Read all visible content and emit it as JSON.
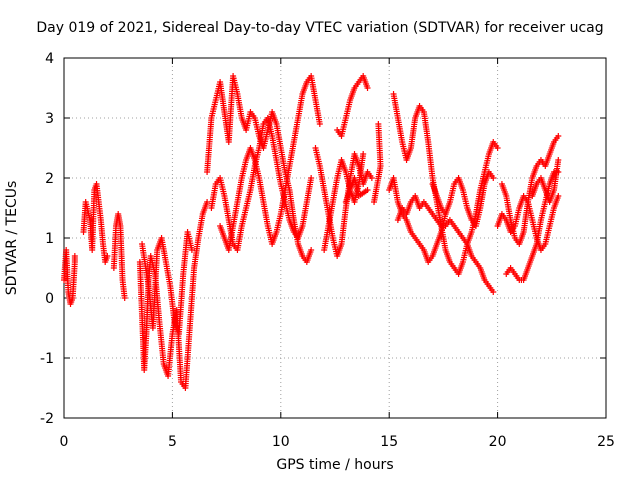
{
  "chart_data": {
    "type": "scatter",
    "title": "Day 019 of 2021, Sidereal Day-to-day VTEC variation (SDTVAR) for receiver ucag",
    "xlabel": "GPS time / hours",
    "ylabel": "SDTVAR / TECUs",
    "xlim": [
      0,
      25
    ],
    "ylim": [
      -2,
      4
    ],
    "xticks": [
      "0",
      "5",
      "10",
      "15",
      "20",
      "25"
    ],
    "yticks": [
      "-2",
      "-1",
      "0",
      "1",
      "2",
      "3",
      "4"
    ],
    "grid": true,
    "marker": "+",
    "color": "#ff0000",
    "series": [
      {
        "points": [
          [
            0.0,
            0.3
          ],
          [
            0.1,
            0.8
          ],
          [
            0.2,
            0.1
          ],
          [
            0.3,
            -0.1
          ],
          [
            0.4,
            0.0
          ],
          [
            0.5,
            0.6
          ],
          [
            0.5,
            0.7
          ]
        ]
      },
      {
        "points": [
          [
            0.9,
            1.1
          ],
          [
            1.0,
            1.6
          ],
          [
            1.2,
            1.3
          ],
          [
            1.3,
            0.8
          ],
          [
            1.4,
            1.8
          ],
          [
            1.5,
            1.9
          ],
          [
            1.6,
            1.6
          ],
          [
            1.7,
            1.3
          ],
          [
            1.8,
            0.9
          ],
          [
            1.9,
            0.6
          ],
          [
            2.0,
            0.7
          ]
        ]
      },
      {
        "points": [
          [
            2.3,
            0.5
          ],
          [
            2.4,
            1.2
          ],
          [
            2.5,
            1.4
          ],
          [
            2.6,
            1.2
          ],
          [
            2.7,
            0.3
          ],
          [
            2.8,
            0.0
          ]
        ]
      },
      {
        "points": [
          [
            3.5,
            0.6
          ],
          [
            3.6,
            -0.3
          ],
          [
            3.7,
            -1.2
          ],
          [
            3.8,
            -0.6
          ],
          [
            3.9,
            0.3
          ],
          [
            4.0,
            0.7
          ],
          [
            4.2,
            0.4
          ],
          [
            4.4,
            -0.4
          ],
          [
            4.6,
            -1.1
          ],
          [
            4.8,
            -1.3
          ],
          [
            5.0,
            -0.6
          ],
          [
            5.2,
            -0.2
          ],
          [
            5.4,
            -1.4
          ],
          [
            5.6,
            -1.5
          ],
          [
            5.8,
            -0.5
          ],
          [
            6.0,
            0.5
          ],
          [
            6.2,
            1.0
          ],
          [
            6.4,
            1.4
          ],
          [
            6.6,
            1.6
          ]
        ]
      },
      {
        "points": [
          [
            3.6,
            0.9
          ],
          [
            3.9,
            0.2
          ],
          [
            4.1,
            -0.5
          ],
          [
            4.3,
            0.8
          ],
          [
            4.5,
            1.0
          ],
          [
            4.7,
            0.6
          ],
          [
            4.9,
            0.2
          ],
          [
            5.1,
            -0.4
          ],
          [
            5.3,
            -0.6
          ],
          [
            5.5,
            0.4
          ],
          [
            5.7,
            1.1
          ],
          [
            5.9,
            0.8
          ]
        ]
      },
      {
        "points": [
          [
            6.6,
            2.1
          ],
          [
            6.8,
            3.0
          ],
          [
            7.0,
            3.3
          ],
          [
            7.2,
            3.6
          ],
          [
            7.4,
            3.1
          ],
          [
            7.6,
            2.6
          ],
          [
            7.8,
            3.7
          ],
          [
            8.0,
            3.4
          ],
          [
            8.2,
            3.0
          ],
          [
            8.4,
            2.8
          ],
          [
            8.6,
            3.1
          ],
          [
            8.8,
            3.0
          ],
          [
            9.0,
            2.7
          ],
          [
            9.2,
            2.5
          ],
          [
            9.4,
            2.8
          ],
          [
            9.6,
            3.1
          ],
          [
            9.8,
            2.9
          ],
          [
            10.0,
            2.5
          ],
          [
            10.2,
            2.1
          ],
          [
            10.4,
            1.8
          ],
          [
            10.6,
            1.3
          ],
          [
            10.8,
            0.9
          ],
          [
            11.0,
            0.7
          ],
          [
            11.2,
            0.6
          ],
          [
            11.4,
            0.8
          ]
        ]
      },
      {
        "points": [
          [
            6.8,
            1.5
          ],
          [
            7.0,
            1.9
          ],
          [
            7.2,
            2.0
          ],
          [
            7.4,
            1.7
          ],
          [
            7.6,
            1.3
          ],
          [
            7.8,
            0.9
          ],
          [
            8.0,
            0.8
          ],
          [
            8.2,
            1.2
          ],
          [
            8.4,
            1.5
          ],
          [
            8.6,
            1.8
          ],
          [
            8.8,
            2.2
          ],
          [
            9.0,
            2.5
          ],
          [
            9.2,
            2.9
          ],
          [
            9.4,
            3.0
          ],
          [
            9.6,
            2.7
          ],
          [
            9.8,
            2.3
          ],
          [
            10.0,
            1.9
          ],
          [
            10.2,
            1.6
          ],
          [
            10.4,
            1.3
          ],
          [
            10.6,
            1.1
          ],
          [
            10.8,
            1.0
          ],
          [
            11.0,
            1.2
          ],
          [
            11.2,
            1.6
          ],
          [
            11.4,
            2.0
          ]
        ]
      },
      {
        "points": [
          [
            7.2,
            1.2
          ],
          [
            7.4,
            1.0
          ],
          [
            7.6,
            0.8
          ],
          [
            7.8,
            1.2
          ],
          [
            8.0,
            1.6
          ],
          [
            8.2,
            2.0
          ],
          [
            8.4,
            2.3
          ],
          [
            8.6,
            2.5
          ],
          [
            8.8,
            2.3
          ],
          [
            9.0,
            2.0
          ],
          [
            9.2,
            1.6
          ],
          [
            9.4,
            1.2
          ],
          [
            9.6,
            0.9
          ],
          [
            9.8,
            1.1
          ],
          [
            10.0,
            1.4
          ],
          [
            10.2,
            1.8
          ],
          [
            10.4,
            2.2
          ],
          [
            10.6,
            2.6
          ],
          [
            10.8,
            3.0
          ],
          [
            11.0,
            3.4
          ],
          [
            11.2,
            3.6
          ],
          [
            11.4,
            3.7
          ],
          [
            11.6,
            3.3
          ],
          [
            11.8,
            2.9
          ]
        ]
      },
      {
        "points": [
          [
            11.6,
            2.5
          ],
          [
            11.8,
            2.2
          ],
          [
            12.0,
            1.8
          ],
          [
            12.2,
            1.4
          ],
          [
            12.4,
            1.0
          ],
          [
            12.6,
            0.7
          ],
          [
            12.8,
            0.9
          ],
          [
            13.0,
            1.5
          ],
          [
            13.2,
            2.0
          ],
          [
            13.4,
            2.4
          ],
          [
            13.6,
            2.2
          ],
          [
            13.8,
            1.9
          ],
          [
            14.0,
            2.1
          ],
          [
            14.2,
            2.0
          ]
        ]
      },
      {
        "points": [
          [
            12.0,
            0.8
          ],
          [
            12.2,
            1.2
          ],
          [
            12.4,
            1.6
          ],
          [
            12.6,
            2.0
          ],
          [
            12.8,
            2.3
          ],
          [
            13.0,
            2.1
          ],
          [
            13.2,
            1.8
          ],
          [
            13.4,
            1.6
          ],
          [
            13.6,
            1.9
          ],
          [
            13.8,
            2.4
          ]
        ]
      },
      {
        "points": [
          [
            12.6,
            2.8
          ],
          [
            12.8,
            2.7
          ],
          [
            13.0,
            3.0
          ],
          [
            13.2,
            3.3
          ],
          [
            13.4,
            3.5
          ],
          [
            13.6,
            3.6
          ],
          [
            13.8,
            3.7
          ],
          [
            14.0,
            3.5
          ]
        ]
      },
      {
        "points": [
          [
            13.0,
            1.6
          ],
          [
            13.2,
            1.8
          ],
          [
            13.4,
            2.0
          ],
          [
            13.6,
            1.7
          ],
          [
            14.0,
            1.8
          ]
        ]
      },
      {
        "points": [
          [
            14.5,
            2.9
          ],
          [
            14.6,
            2.2
          ],
          [
            14.3,
            1.6
          ]
        ]
      },
      {
        "points": [
          [
            15.0,
            1.8
          ],
          [
            15.2,
            2.0
          ],
          [
            15.4,
            1.6
          ],
          [
            15.6,
            1.4
          ],
          [
            15.8,
            1.3
          ],
          [
            16.0,
            1.1
          ],
          [
            16.2,
            1.0
          ],
          [
            16.4,
            0.9
          ],
          [
            16.6,
            0.8
          ],
          [
            16.8,
            0.6
          ],
          [
            17.0,
            0.7
          ],
          [
            17.2,
            0.9
          ],
          [
            17.4,
            1.1
          ],
          [
            17.6,
            1.4
          ]
        ]
      },
      {
        "points": [
          [
            15.2,
            3.4
          ],
          [
            15.4,
            3.0
          ],
          [
            15.6,
            2.6
          ],
          [
            15.8,
            2.3
          ],
          [
            16.0,
            2.5
          ],
          [
            16.2,
            3.0
          ],
          [
            16.4,
            3.2
          ],
          [
            16.6,
            3.1
          ],
          [
            16.8,
            2.6
          ],
          [
            17.0,
            2.0
          ],
          [
            17.2,
            1.6
          ],
          [
            17.4,
            1.2
          ],
          [
            17.6,
            0.8
          ],
          [
            17.8,
            0.6
          ],
          [
            18.0,
            0.5
          ],
          [
            18.2,
            0.4
          ],
          [
            18.4,
            0.6
          ],
          [
            18.6,
            0.9
          ],
          [
            18.8,
            1.1
          ],
          [
            19.0,
            1.4
          ],
          [
            19.2,
            1.8
          ],
          [
            19.4,
            2.1
          ],
          [
            19.6,
            2.4
          ],
          [
            19.8,
            2.6
          ],
          [
            20.0,
            2.5
          ]
        ]
      },
      {
        "points": [
          [
            15.4,
            1.3
          ],
          [
            15.6,
            1.5
          ],
          [
            15.8,
            1.4
          ],
          [
            16.0,
            1.6
          ],
          [
            16.2,
            1.7
          ],
          [
            16.4,
            1.5
          ],
          [
            16.6,
            1.6
          ],
          [
            16.8,
            1.5
          ],
          [
            17.0,
            1.4
          ],
          [
            17.2,
            1.3
          ],
          [
            17.4,
            1.2
          ],
          [
            17.6,
            1.2
          ],
          [
            17.8,
            1.3
          ],
          [
            18.0,
            1.2
          ],
          [
            18.2,
            1.1
          ],
          [
            18.4,
            1.0
          ],
          [
            18.6,
            0.9
          ],
          [
            18.8,
            0.7
          ],
          [
            19.0,
            0.6
          ],
          [
            19.2,
            0.5
          ],
          [
            19.4,
            0.3
          ],
          [
            19.6,
            0.2
          ],
          [
            19.8,
            0.1
          ]
        ]
      },
      {
        "points": [
          [
            17.0,
            1.9
          ],
          [
            17.2,
            1.7
          ],
          [
            17.4,
            1.5
          ],
          [
            17.6,
            1.4
          ],
          [
            17.8,
            1.6
          ],
          [
            18.0,
            1.9
          ],
          [
            18.2,
            2.0
          ],
          [
            18.4,
            1.8
          ],
          [
            18.6,
            1.5
          ],
          [
            18.8,
            1.3
          ],
          [
            19.0,
            1.2
          ],
          [
            19.2,
            1.5
          ],
          [
            19.4,
            1.9
          ],
          [
            19.6,
            2.1
          ],
          [
            19.8,
            2.0
          ]
        ]
      },
      {
        "points": [
          [
            20.0,
            1.2
          ],
          [
            20.2,
            1.4
          ],
          [
            20.4,
            1.3
          ],
          [
            20.6,
            1.1
          ],
          [
            20.8,
            1.2
          ],
          [
            21.0,
            1.5
          ],
          [
            21.2,
            1.7
          ],
          [
            21.4,
            1.6
          ],
          [
            21.6,
            1.3
          ],
          [
            21.8,
            1.0
          ],
          [
            22.0,
            0.8
          ],
          [
            22.2,
            0.9
          ],
          [
            22.4,
            1.2
          ],
          [
            22.6,
            1.5
          ],
          [
            22.8,
            1.7
          ]
        ]
      },
      {
        "points": [
          [
            20.2,
            1.9
          ],
          [
            20.4,
            1.7
          ],
          [
            20.6,
            1.3
          ],
          [
            20.8,
            1.0
          ],
          [
            21.0,
            0.9
          ],
          [
            21.2,
            1.1
          ],
          [
            21.4,
            1.6
          ],
          [
            21.6,
            2.0
          ],
          [
            21.8,
            2.2
          ],
          [
            22.0,
            2.3
          ],
          [
            22.2,
            2.2
          ],
          [
            22.4,
            2.4
          ],
          [
            22.6,
            2.6
          ],
          [
            22.8,
            2.7
          ]
        ]
      },
      {
        "points": [
          [
            20.4,
            0.4
          ],
          [
            20.6,
            0.5
          ],
          [
            20.8,
            0.4
          ],
          [
            21.0,
            0.3
          ],
          [
            21.2,
            0.3
          ],
          [
            21.4,
            0.5
          ],
          [
            21.6,
            0.7
          ],
          [
            21.8,
            0.9
          ],
          [
            22.0,
            1.3
          ],
          [
            22.2,
            1.6
          ],
          [
            22.4,
            1.9
          ],
          [
            22.6,
            2.1
          ],
          [
            22.8,
            2.1
          ]
        ]
      },
      {
        "points": [
          [
            21.6,
            1.7
          ],
          [
            21.8,
            1.9
          ],
          [
            22.0,
            2.0
          ],
          [
            22.2,
            1.8
          ],
          [
            22.4,
            1.6
          ],
          [
            22.6,
            1.8
          ],
          [
            22.8,
            2.3
          ]
        ]
      }
    ]
  }
}
